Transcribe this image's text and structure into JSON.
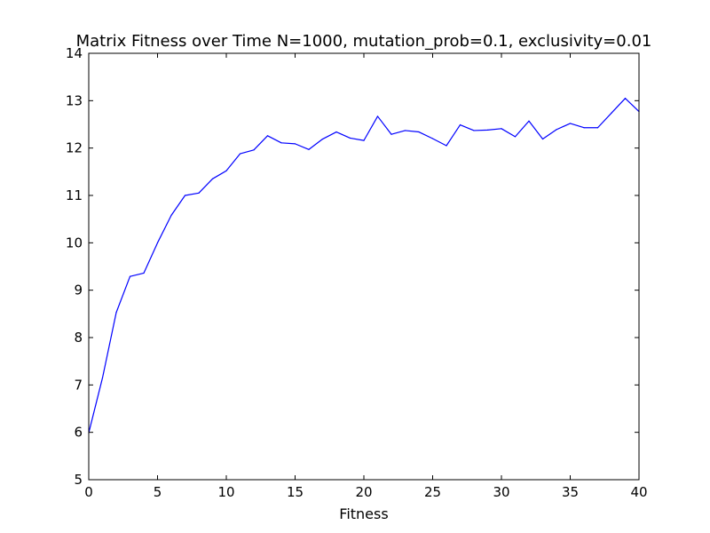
{
  "chart_data": {
    "type": "line",
    "title": "Matrix Fitness over Time N=1000, mutation_prob=0.1, exclusivity=0.01",
    "xlabel": "Fitness",
    "ylabel": "",
    "xlim": [
      0,
      40
    ],
    "ylim": [
      5,
      14
    ],
    "xticks": [
      0,
      5,
      10,
      15,
      20,
      25,
      30,
      35,
      40
    ],
    "yticks": [
      5,
      6,
      7,
      8,
      9,
      10,
      11,
      12,
      13,
      14
    ],
    "grid": false,
    "legend": "none",
    "series": [
      {
        "color": "#0000ff",
        "x": [
          0,
          1,
          2,
          3,
          4,
          5,
          6,
          7,
          8,
          9,
          10,
          11,
          12,
          13,
          14,
          15,
          16,
          17,
          18,
          19,
          20,
          21,
          22,
          23,
          24,
          25,
          26,
          27,
          28,
          29,
          30,
          31,
          32,
          33,
          34,
          35,
          36,
          37,
          38,
          39,
          40
        ],
        "values": [
          5.99,
          7.15,
          8.53,
          9.29,
          9.36,
          10.0,
          10.58,
          11.0,
          11.05,
          11.35,
          11.52,
          11.88,
          11.96,
          12.26,
          12.11,
          12.09,
          11.97,
          12.19,
          12.34,
          12.21,
          12.16,
          12.67,
          12.29,
          12.37,
          12.34,
          12.2,
          12.05,
          12.49,
          12.37,
          12.38,
          12.41,
          12.24,
          12.57,
          12.19,
          12.39,
          12.52,
          12.43,
          12.43,
          12.74,
          13.05,
          12.77
        ]
      }
    ]
  }
}
